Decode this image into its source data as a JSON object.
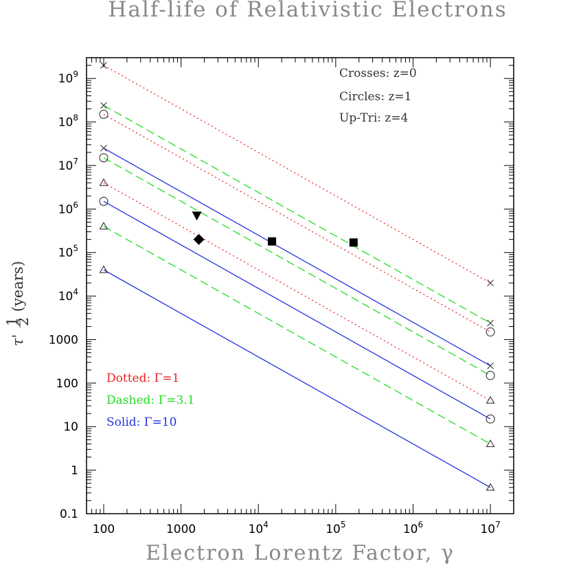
{
  "chart_data": {
    "type": "line",
    "title": "Half-life of Relativistic Electrons",
    "xlabel": "Electron Lorentz Factor, γ",
    "ylabel_main": "τ'",
    "ylabel_frac_num": "1",
    "ylabel_frac_den": "2",
    "ylabel_unit": "(years)",
    "x_scale": "log",
    "y_scale": "log",
    "xlim": [
      60,
      20000000
    ],
    "ylim": [
      0.1,
      3000000000
    ],
    "x_ticks": [
      {
        "value": 100,
        "label": "100",
        "exp": ""
      },
      {
        "value": 1000,
        "label": "1000",
        "exp": ""
      },
      {
        "value": 10000,
        "label": "10",
        "exp": "4"
      },
      {
        "value": 100000,
        "label": "10",
        "exp": "5"
      },
      {
        "value": 1000000,
        "label": "10",
        "exp": "6"
      },
      {
        "value": 10000000,
        "label": "10",
        "exp": "7"
      }
    ],
    "y_ticks": [
      {
        "value": 0.1,
        "label": "0.1",
        "exp": ""
      },
      {
        "value": 1,
        "label": "1",
        "exp": ""
      },
      {
        "value": 10,
        "label": "10",
        "exp": ""
      },
      {
        "value": 100,
        "label": "100",
        "exp": ""
      },
      {
        "value": 1000,
        "label": "1000",
        "exp": ""
      },
      {
        "value": 10000,
        "label": "10",
        "exp": "4"
      },
      {
        "value": 100000,
        "label": "10",
        "exp": "5"
      },
      {
        "value": 1000000,
        "label": "10",
        "exp": "6"
      },
      {
        "value": 10000000,
        "label": "10",
        "exp": "7"
      },
      {
        "value": 100000000,
        "label": "10",
        "exp": "8"
      },
      {
        "value": 1000000000,
        "label": "10",
        "exp": "9"
      }
    ],
    "colors": {
      "dotted": "#ee2222",
      "dashed": "#22dd22",
      "solid": "#2233dd"
    },
    "series": [
      {
        "style": "dotted",
        "z": 0,
        "marker": "cross",
        "x": [
          100,
          10000000
        ],
        "y": [
          2000000000,
          20000
        ]
      },
      {
        "style": "dotted",
        "z": 1,
        "marker": "circle",
        "x": [
          100,
          10000000
        ],
        "y": [
          150000000,
          1500
        ]
      },
      {
        "style": "dotted",
        "z": 4,
        "marker": "triangle",
        "x": [
          100,
          10000000
        ],
        "y": [
          4000000,
          40
        ]
      },
      {
        "style": "dashed",
        "z": 0,
        "marker": "cross",
        "x": [
          100,
          10000000
        ],
        "y": [
          240000000,
          2400
        ]
      },
      {
        "style": "dashed",
        "z": 1,
        "marker": "circle",
        "x": [
          100,
          10000000
        ],
        "y": [
          15000000,
          150
        ]
      },
      {
        "style": "dashed",
        "z": 4,
        "marker": "triangle",
        "x": [
          100,
          10000000
        ],
        "y": [
          400000,
          4
        ]
      },
      {
        "style": "solid",
        "z": 0,
        "marker": "cross",
        "x": [
          100,
          10000000
        ],
        "y": [
          25000000,
          250
        ]
      },
      {
        "style": "solid",
        "z": 1,
        "marker": "circle",
        "x": [
          100,
          10000000
        ],
        "y": [
          1500000,
          15
        ]
      },
      {
        "style": "solid",
        "z": 4,
        "marker": "triangle",
        "x": [
          100,
          10000000
        ],
        "y": [
          40000,
          0.4
        ]
      }
    ],
    "points": [
      {
        "shape": "down-triangle",
        "x": 1600,
        "y": 700000
      },
      {
        "shape": "diamond",
        "x": 1700,
        "y": 200000
      },
      {
        "shape": "square",
        "x": 15000,
        "y": 180000
      },
      {
        "shape": "square",
        "x": 170000,
        "y": 170000
      }
    ],
    "annotations": [
      "Crosses: z=0",
      "Circles: z=1",
      "Up-Tri: z=4"
    ],
    "legend": [
      {
        "style": "dotted",
        "label": "Dotted: Γ=1"
      },
      {
        "style": "dashed",
        "label": "Dashed: Γ=3.1"
      },
      {
        "style": "solid",
        "label": "Solid: Γ=10"
      }
    ]
  }
}
